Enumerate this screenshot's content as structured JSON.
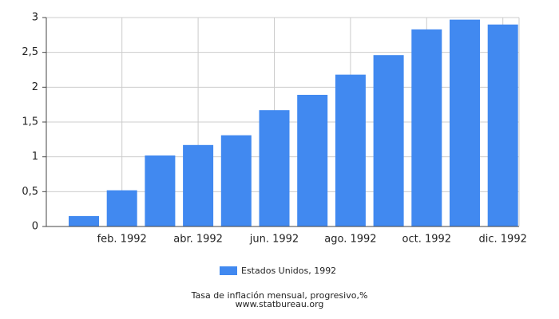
{
  "chart_data": {
    "type": "bar",
    "categories": [
      null,
      "feb. 1992",
      null,
      "abr. 1992",
      null,
      "jun. 1992",
      null,
      "ago. 1992",
      null,
      "oct. 1992",
      null,
      "dic. 1992"
    ],
    "series": [
      {
        "name": "Estados Unidos, 1992",
        "color": "#4189f0",
        "values": [
          0.15,
          0.52,
          1.02,
          1.17,
          1.31,
          1.67,
          1.89,
          2.18,
          2.46,
          2.83,
          2.97,
          2.9
        ]
      }
    ],
    "ylim": [
      0,
      3
    ],
    "yticks": [
      0,
      {
        "value": 0.5,
        "label": "0,5"
      },
      1,
      {
        "value": 1.5,
        "label": "1,5"
      },
      2,
      {
        "value": 2.5,
        "label": "2,5"
      },
      3
    ],
    "grid": true,
    "legend": "bottom",
    "footer": [
      "Tasa de inflación mensual, progresivo,%",
      "www.statbureau.org"
    ]
  }
}
